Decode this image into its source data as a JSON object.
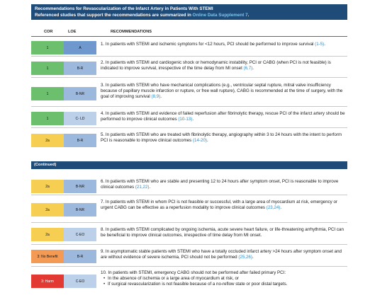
{
  "header": {
    "title": "Recommendations for Revascularization of the Infarct Artery in Patients With STEMI",
    "subtitle_prefix": "Referenced studies that support the recommendations are summarized in ",
    "subtitle_link": "Online Data Supplement 7",
    "subtitle_suffix": "."
  },
  "columns": {
    "cor": "COR",
    "loe": "LOE",
    "recommendations": "RECOMMENDATIONS"
  },
  "continued_label": "(Continued)",
  "colors": {
    "banner": "#1f4b79",
    "cor_1": "#6cbf6c",
    "cor_2a": "#f6cf52",
    "cor_3_no_benefit": "#f39a55",
    "cor_3_harm": "#e23a33",
    "loe_a": "#6f98cf",
    "loe_b": "#9cb8dd",
    "link": "#2a8ac7"
  },
  "rows": [
    {
      "cor": "1",
      "loe": "A",
      "number": "1.",
      "text": "In patients with STEMI and ischemic symptoms for <12 hours, PCI should be performed to improve survival ",
      "cite": "(1-5)",
      "end": "."
    },
    {
      "cor": "1",
      "loe": "B-R",
      "number": "2.",
      "text": "In patients with STEMI and cardiogenic shock or hemodynamic instability, PCI or CABG (when PCI is not feasible) is indicated to improve survival, irrespective of the time delay from MI onset ",
      "cite": "(6,7)",
      "end": "."
    },
    {
      "cor": "1",
      "loe": "B-NR",
      "number": "3.",
      "text": "In patients with STEMI who have mechanical complications (e.g., ventricular septal rupture, mitral valve insufficiency because of papillary muscle infarction or rupture, or free wall rupture), CABG is recommended at the time of surgery, with the goal of improving survival ",
      "cite": "(8,9)",
      "end": "."
    },
    {
      "cor": "1",
      "loe": "C- LD",
      "number": "4.",
      "text": "In patients with STEMI and evidence of failed reperfusion after fibrinolytic therapy, rescue PCI of the infarct artery should be performed to improve clinical outcomes ",
      "cite": "(10-13)",
      "end": "."
    },
    {
      "cor": "2a",
      "loe": "B-R",
      "number": "5.",
      "text": "In patients with STEMI who are treated with fibrinolytic therapy, angiography within 3 to 24 hours with the intent to perform PCI is reasonable to improve clinical outcomes ",
      "cite": "(14-20)",
      "end": "."
    },
    {
      "cor": "2a",
      "loe": "B-NR",
      "number": "6.",
      "text": "In patients with STEMI who are stable and presenting 12 to 24 hours after symptom onset, PCI is reasonable to improve clinical outcomes ",
      "cite": "(21,22)",
      "end": "."
    },
    {
      "cor": "2a",
      "loe": "B-NR",
      "number": "7.",
      "text": "In patients with STEMI in whom PCI is not feasible or successful, with a large area of myocardium at risk, emergency or urgent CABG can be effective as a reperfusion modality to improve clinical outcomes ",
      "cite": "(23,24)",
      "end": "."
    },
    {
      "cor": "2a",
      "loe": "C-EO",
      "number": "8.",
      "text": "In patients with STEMI complicated by ongoing ischemia, acute severe heart failure, or life-threatening arrhythmia, PCI can be beneficial to improve clinical outcomes, irrespective of time delay from MI onset.",
      "cite": "",
      "end": ""
    },
    {
      "cor": "3: No Benefit",
      "loe": "B-R",
      "number": "9.",
      "text": "In asymptomatic stable patients with STEMI who have a totally occluded infarct artery >24 hours after symptom onset and are without evidence of severe ischemia, PCI should not be performed ",
      "cite": "(25,26)",
      "end": "."
    },
    {
      "cor": "3: Harm",
      "loe": "C-EO",
      "number": "10.",
      "text": "In patients with STEMI, emergency CABG should not be performed after failed primary PCI:",
      "cite": "",
      "end": "",
      "bullets": [
        "In the absence of ischemia or a large area of myocardium at risk, or",
        "If surgical revascularization is not feasible because of a no-reflow state or poor distal targets."
      ]
    }
  ]
}
